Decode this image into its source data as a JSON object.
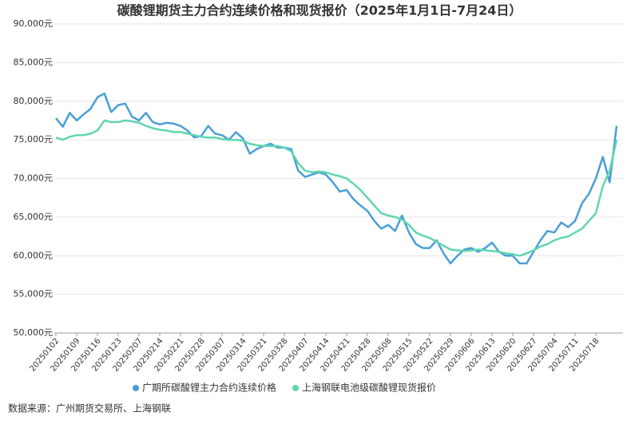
{
  "chart_data": {
    "type": "line",
    "title": "碳酸锂期货主力合约连续价格和现货报价（2025年1月1日-7月24日）",
    "source": "数据来源：广州期货交易所、上海钢联",
    "categories": [
      "20250102",
      null,
      null,
      "20250109",
      null,
      null,
      "20250116",
      null,
      null,
      "20250123",
      null,
      null,
      "20250207",
      null,
      null,
      "20250214",
      null,
      null,
      "20250221",
      null,
      null,
      "20250228",
      null,
      null,
      "20250307",
      null,
      null,
      "20250314",
      null,
      null,
      "20250321",
      null,
      null,
      "20250328",
      null,
      null,
      "20250407",
      null,
      null,
      "20250414",
      null,
      null,
      "20250421",
      null,
      null,
      "20250428",
      null,
      null,
      "20250508",
      null,
      null,
      "20250515",
      null,
      null,
      "20250522",
      null,
      null,
      "20250529",
      null,
      null,
      "20250606",
      null,
      null,
      "20250613",
      null,
      null,
      "20250620",
      null,
      null,
      "20250627",
      null,
      null,
      "20250704",
      null,
      null,
      "20250711",
      null,
      null,
      "20250718",
      null,
      null,
      null
    ],
    "series": [
      {
        "name": "广期所碳酸锂主力合约连续价格",
        "color": "#4a9fd8",
        "values": [
          77800,
          76700,
          78500,
          77500,
          78300,
          79000,
          80500,
          81000,
          78600,
          79500,
          79700,
          78000,
          77500,
          78500,
          77300,
          77000,
          77200,
          77100,
          76800,
          76200,
          75300,
          75500,
          76800,
          75800,
          75600,
          75000,
          76000,
          75200,
          73200,
          73800,
          74200,
          74500,
          74000,
          74000,
          73800,
          71000,
          70200,
          70500,
          70800,
          70500,
          69500,
          68300,
          68500,
          67300,
          66500,
          65800,
          64500,
          63500,
          64000,
          63200,
          65200,
          63000,
          61500,
          61000,
          61000,
          62000,
          60300,
          59000,
          60000,
          60800,
          61000,
          60500,
          61000,
          61700,
          60500,
          60000,
          60000,
          59000,
          59000,
          60500,
          62000,
          63200,
          63000,
          64300,
          63700,
          64500,
          66800,
          68000,
          70000,
          72800,
          69500,
          76800
        ]
      },
      {
        "name": "上海钢联电池级碳酸锂现货报价",
        "color": "#5fd6b0",
        "values": [
          75300,
          75000,
          75400,
          75600,
          75600,
          75800,
          76200,
          77500,
          77300,
          77300,
          77500,
          77400,
          77200,
          76800,
          76500,
          76300,
          76200,
          76000,
          76000,
          75800,
          75600,
          75400,
          75300,
          75300,
          75100,
          75000,
          75000,
          74900,
          74500,
          74300,
          74200,
          74200,
          74200,
          74000,
          73500,
          72000,
          71000,
          70800,
          70900,
          70800,
          70500,
          70300,
          70000,
          69300,
          68500,
          67500,
          66500,
          65500,
          65200,
          65000,
          64700,
          64000,
          63000,
          62600,
          62300,
          61800,
          61300,
          60800,
          60700,
          60600,
          60700,
          60800,
          60700,
          60600,
          60500,
          60300,
          60200,
          60000,
          60300,
          60700,
          61200,
          61500,
          62000,
          62300,
          62500,
          63000,
          63500,
          64500,
          65500,
          69000,
          71000,
          75000
        ]
      }
    ],
    "ylim": [
      50000,
      90000
    ],
    "yticks": [
      {
        "value": 50000,
        "label": "50,000元"
      },
      {
        "value": 55000,
        "label": "55,000元"
      },
      {
        "value": 60000,
        "label": "60,000元"
      },
      {
        "value": 65000,
        "label": "65,000元"
      },
      {
        "value": 70000,
        "label": "70,000元"
      },
      {
        "value": 75000,
        "label": "75,000元"
      },
      {
        "value": 80000,
        "label": "80,000元"
      },
      {
        "value": 85000,
        "label": "85,000元"
      },
      {
        "value": 90000,
        "label": "90,000元"
      }
    ],
    "grid": true,
    "legend": "bottom"
  }
}
